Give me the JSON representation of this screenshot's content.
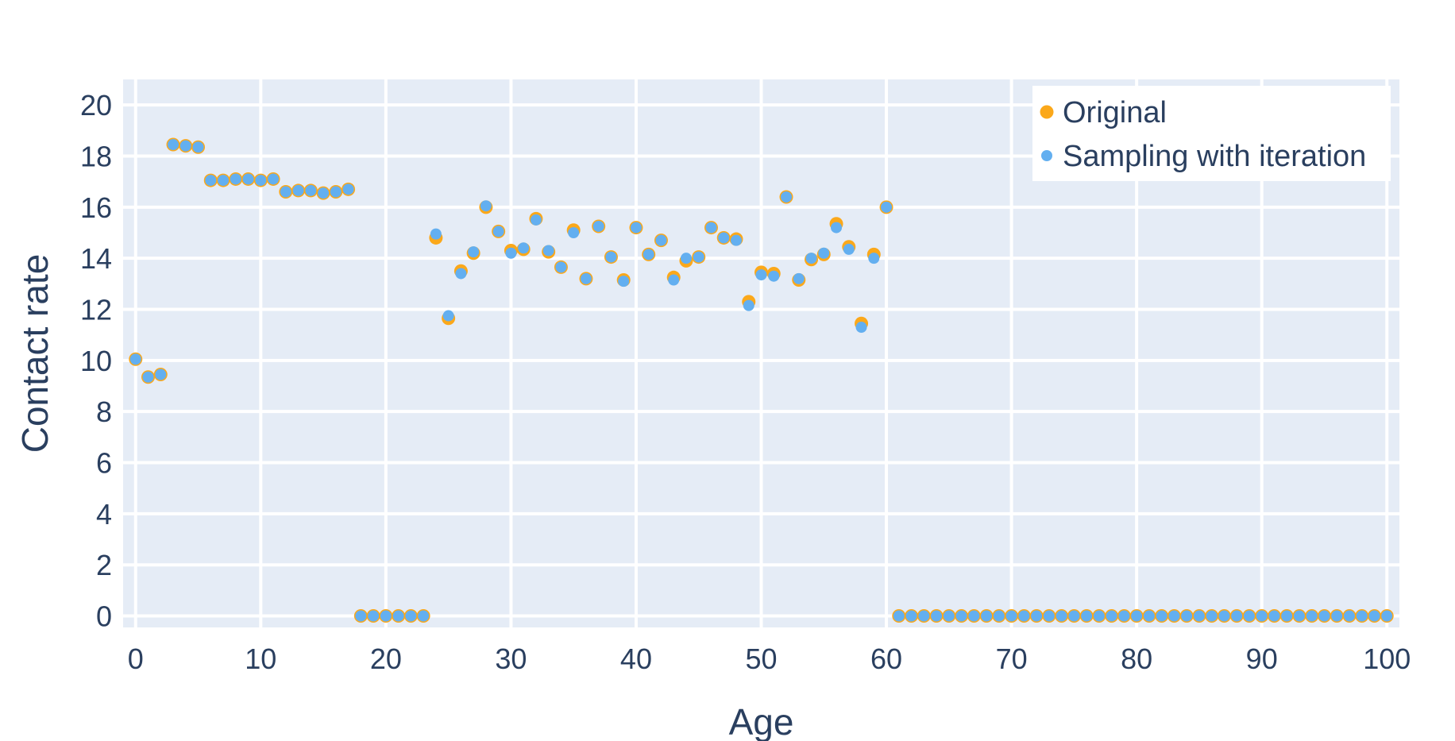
{
  "colors": {
    "plot_background": "#e5ecf6",
    "grid": "#ffffff",
    "text": "#2a3f5f",
    "original": "#fba81a",
    "sampling": "#63aff0"
  },
  "chart_data": {
    "type": "scatter",
    "title": "",
    "xlabel": "Age",
    "ylabel": "Contact rate",
    "xlim": [
      -1,
      101
    ],
    "ylim": [
      -0.45,
      21
    ],
    "xticks": [
      0,
      10,
      20,
      30,
      40,
      50,
      60,
      70,
      80,
      90,
      100
    ],
    "yticks": [
      0,
      2,
      4,
      6,
      8,
      10,
      12,
      14,
      16,
      18,
      20
    ],
    "grid": true,
    "legend_position": "top-right",
    "x": [
      0,
      1,
      2,
      3,
      4,
      5,
      6,
      7,
      8,
      9,
      10,
      11,
      12,
      13,
      14,
      15,
      16,
      17,
      18,
      19,
      20,
      21,
      22,
      23,
      24,
      25,
      26,
      27,
      28,
      29,
      30,
      31,
      32,
      33,
      34,
      35,
      36,
      37,
      38,
      39,
      40,
      41,
      42,
      43,
      44,
      45,
      46,
      47,
      48,
      49,
      50,
      51,
      52,
      53,
      54,
      55,
      56,
      57,
      58,
      59,
      60,
      61,
      62,
      63,
      64,
      65,
      66,
      67,
      68,
      69,
      70,
      71,
      72,
      73,
      74,
      75,
      76,
      77,
      78,
      79,
      80,
      81,
      82,
      83,
      84,
      85,
      86,
      87,
      88,
      89,
      90,
      91,
      92,
      93,
      94,
      95,
      96,
      97,
      98,
      99,
      100
    ],
    "series": [
      {
        "name": "Original",
        "color": "#fba81a",
        "values": [
          10.05,
          9.35,
          9.45,
          18.45,
          18.4,
          18.35,
          17.05,
          17.05,
          17.1,
          17.1,
          17.05,
          17.1,
          16.6,
          16.65,
          16.65,
          16.55,
          16.6,
          16.7,
          0,
          0,
          0,
          0,
          0,
          0,
          14.8,
          11.65,
          13.5,
          14.2,
          16.0,
          15.05,
          14.3,
          14.35,
          15.55,
          14.25,
          13.65,
          15.1,
          13.2,
          15.25,
          14.05,
          13.15,
          15.2,
          14.15,
          14.7,
          13.25,
          13.9,
          14.05,
          15.2,
          14.8,
          14.75,
          12.3,
          13.45,
          13.4,
          16.4,
          13.15,
          13.95,
          14.15,
          15.35,
          14.45,
          11.45,
          14.15,
          16.0,
          0,
          0,
          0,
          0,
          0,
          0,
          0,
          0,
          0,
          0,
          0,
          0,
          0,
          0,
          0,
          0,
          0,
          0,
          0,
          0,
          0,
          0,
          0,
          0,
          0,
          0,
          0,
          0,
          0,
          0,
          0,
          0,
          0,
          0,
          0,
          0,
          0,
          0,
          0,
          0
        ]
      },
      {
        "name": "Sampling with iteration",
        "color": "#63aff0",
        "values": [
          10.05,
          9.35,
          9.45,
          18.45,
          18.4,
          18.35,
          17.05,
          17.05,
          17.1,
          17.1,
          17.05,
          17.1,
          16.6,
          16.65,
          16.65,
          16.55,
          16.6,
          16.7,
          0,
          0,
          0,
          0,
          0,
          0,
          14.95,
          11.75,
          13.4,
          14.25,
          16.05,
          15.05,
          14.2,
          14.4,
          15.5,
          14.3,
          13.65,
          15.0,
          13.2,
          15.25,
          14.05,
          13.1,
          15.2,
          14.15,
          14.7,
          13.15,
          14.0,
          14.05,
          15.2,
          14.8,
          14.7,
          12.15,
          13.35,
          13.3,
          16.4,
          13.2,
          14.0,
          14.2,
          15.2,
          14.35,
          11.3,
          14.0,
          16.0,
          0,
          0,
          0,
          0,
          0,
          0,
          0,
          0,
          0,
          0,
          0,
          0,
          0,
          0,
          0,
          0,
          0,
          0,
          0,
          0,
          0,
          0,
          0,
          0,
          0,
          0,
          0,
          0,
          0,
          0,
          0,
          0,
          0,
          0,
          0,
          0,
          0,
          0,
          0,
          0
        ]
      }
    ]
  }
}
